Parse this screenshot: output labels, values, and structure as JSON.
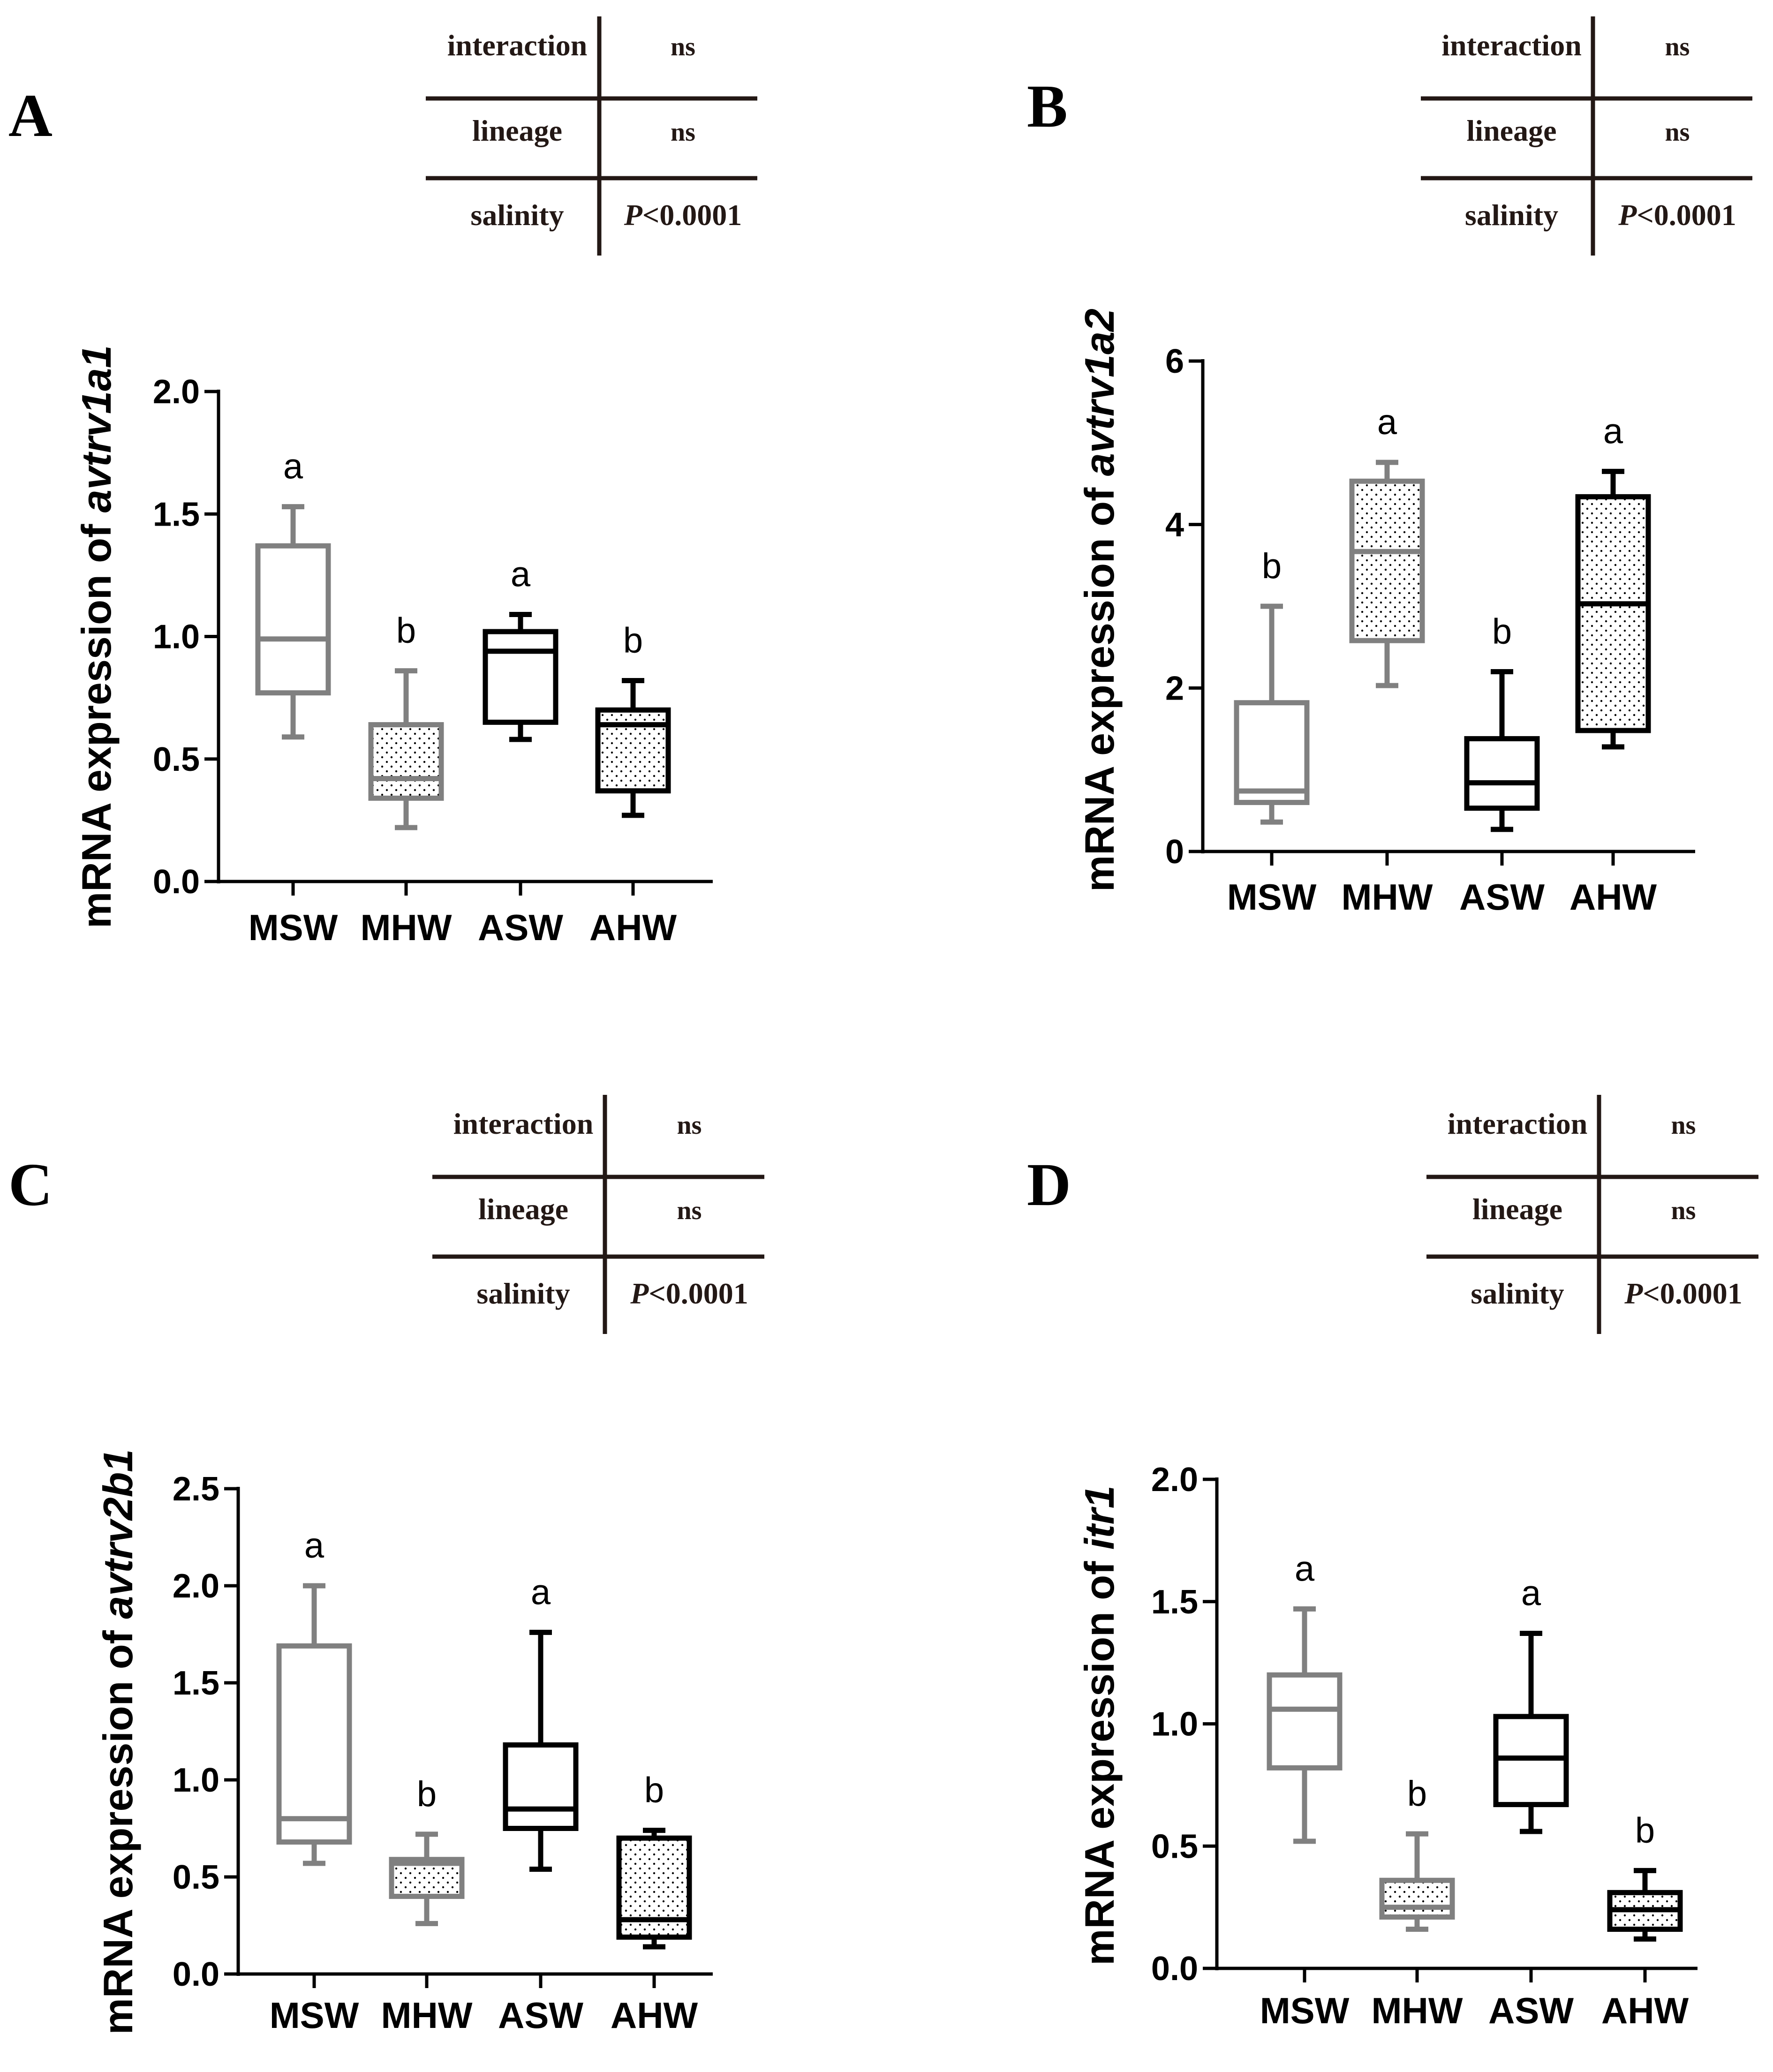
{
  "panels": [
    {
      "letter": "A",
      "gene": "avtrv1a1",
      "ylabel_prefix": "mRNA expression of ",
      "stats": [
        {
          "label": "interaction",
          "value": "ns"
        },
        {
          "label": "lineage",
          "value": "ns"
        },
        {
          "label": "salinity",
          "value": "<0.0001",
          "value_italic_prefix": "P"
        }
      ]
    },
    {
      "letter": "B",
      "gene": "avtrv1a2",
      "ylabel_prefix": "mRNA expression of ",
      "stats": [
        {
          "label": "interaction",
          "value": "ns"
        },
        {
          "label": "lineage",
          "value": "ns"
        },
        {
          "label": "salinity",
          "value": "<0.0001",
          "value_italic_prefix": "P"
        }
      ]
    },
    {
      "letter": "C",
      "gene": "avtrv2b1",
      "ylabel_prefix": "mRNA expression of ",
      "stats": [
        {
          "label": "interaction",
          "value": "ns"
        },
        {
          "label": "lineage",
          "value": "ns"
        },
        {
          "label": "salinity",
          "value": "<0.0001",
          "value_italic_prefix": "P"
        }
      ]
    },
    {
      "letter": "D",
      "gene": "itr1",
      "ylabel_prefix": "mRNA expression of ",
      "stats": [
        {
          "label": "interaction",
          "value": "ns"
        },
        {
          "label": "lineage",
          "value": "ns"
        },
        {
          "label": "salinity",
          "value": "<0.0001",
          "value_italic_prefix": "P"
        }
      ]
    }
  ],
  "colors": {
    "gray": "#808080",
    "black": "#000000",
    "table_line": "#231815"
  },
  "chart_data": [
    {
      "type": "box",
      "title": "A",
      "ylabel": "mRNA expression of avtrv1a1",
      "categories": [
        "MSW",
        "MHW",
        "ASW",
        "AHW"
      ],
      "ylim": [
        0,
        2.0
      ],
      "yticks": [
        "0.0",
        "0.5",
        "1.0",
        "1.5",
        "2.0"
      ],
      "ytick_values": [
        0,
        0.5,
        1.0,
        1.5,
        2.0
      ],
      "boxes": [
        {
          "category": "MSW",
          "min": 0.59,
          "q1": 0.77,
          "median": 0.99,
          "q3": 1.37,
          "max": 1.53,
          "letter": "a",
          "color": "gray",
          "pattern": false
        },
        {
          "category": "MHW",
          "min": 0.22,
          "q1": 0.34,
          "median": 0.42,
          "q3": 0.64,
          "max": 0.86,
          "letter": "b",
          "color": "gray",
          "pattern": true
        },
        {
          "category": "ASW",
          "min": 0.58,
          "q1": 0.65,
          "median": 0.94,
          "q3": 1.02,
          "max": 1.09,
          "letter": "a",
          "color": "black",
          "pattern": false
        },
        {
          "category": "AHW",
          "min": 0.27,
          "q1": 0.37,
          "median": 0.64,
          "q3": 0.7,
          "max": 0.82,
          "letter": "b",
          "color": "black",
          "pattern": true
        }
      ]
    },
    {
      "type": "box",
      "title": "B",
      "ylabel": "mRNA expression of avtrv1a2",
      "categories": [
        "MSW",
        "MHW",
        "ASW",
        "AHW"
      ],
      "ylim": [
        0,
        6
      ],
      "yticks": [
        "0",
        "2",
        "4",
        "6"
      ],
      "ytick_values": [
        0,
        2,
        4,
        6
      ],
      "boxes": [
        {
          "category": "MSW",
          "min": 0.36,
          "q1": 0.6,
          "median": 0.74,
          "q3": 1.82,
          "max": 3.0,
          "letter": "b",
          "color": "gray",
          "pattern": false
        },
        {
          "category": "MHW",
          "min": 2.03,
          "q1": 2.58,
          "median": 3.67,
          "q3": 4.53,
          "max": 4.76,
          "letter": "a",
          "color": "gray",
          "pattern": true
        },
        {
          "category": "ASW",
          "min": 0.27,
          "q1": 0.53,
          "median": 0.84,
          "q3": 1.38,
          "max": 2.2,
          "letter": "b",
          "color": "black",
          "pattern": false
        },
        {
          "category": "AHW",
          "min": 1.28,
          "q1": 1.48,
          "median": 3.03,
          "q3": 4.34,
          "max": 4.65,
          "letter": "a",
          "color": "black",
          "pattern": true
        }
      ]
    },
    {
      "type": "box",
      "title": "C",
      "ylabel": "mRNA expression of avtrv2b1",
      "categories": [
        "MSW",
        "MHW",
        "ASW",
        "AHW"
      ],
      "ylim": [
        0,
        2.5
      ],
      "yticks": [
        "0.0",
        "0.5",
        "1.0",
        "1.5",
        "2.0",
        "2.5"
      ],
      "ytick_values": [
        0,
        0.5,
        1.0,
        1.5,
        2.0,
        2.5
      ],
      "boxes": [
        {
          "category": "MSW",
          "min": 0.57,
          "q1": 0.68,
          "median": 0.8,
          "q3": 1.69,
          "max": 2.0,
          "letter": "a",
          "color": "gray",
          "pattern": false
        },
        {
          "category": "MHW",
          "min": 0.26,
          "q1": 0.4,
          "median": 0.57,
          "q3": 0.59,
          "max": 0.72,
          "letter": "b",
          "color": "gray",
          "pattern": true
        },
        {
          "category": "ASW",
          "min": 0.54,
          "q1": 0.75,
          "median": 0.85,
          "q3": 1.18,
          "max": 1.76,
          "letter": "a",
          "color": "black",
          "pattern": false
        },
        {
          "category": "AHW",
          "min": 0.14,
          "q1": 0.19,
          "median": 0.28,
          "q3": 0.7,
          "max": 0.74,
          "letter": "b",
          "color": "black",
          "pattern": true
        }
      ]
    },
    {
      "type": "box",
      "title": "D",
      "ylabel": "mRNA expression of itr1",
      "categories": [
        "MSW",
        "MHW",
        "ASW",
        "AHW"
      ],
      "ylim": [
        0,
        2.0
      ],
      "yticks": [
        "0.0",
        "0.5",
        "1.0",
        "1.5",
        "2.0"
      ],
      "ytick_values": [
        0,
        0.5,
        1.0,
        1.5,
        2.0
      ],
      "boxes": [
        {
          "category": "MSW",
          "min": 0.52,
          "q1": 0.82,
          "median": 1.06,
          "q3": 1.2,
          "max": 1.47,
          "letter": "a",
          "color": "gray",
          "pattern": false
        },
        {
          "category": "MHW",
          "min": 0.16,
          "q1": 0.21,
          "median": 0.25,
          "q3": 0.36,
          "max": 0.55,
          "letter": "b",
          "color": "gray",
          "pattern": true
        },
        {
          "category": "ASW",
          "min": 0.56,
          "q1": 0.67,
          "median": 0.86,
          "q3": 1.03,
          "max": 1.37,
          "letter": "a",
          "color": "black",
          "pattern": false
        },
        {
          "category": "AHW",
          "min": 0.12,
          "q1": 0.16,
          "median": 0.24,
          "q3": 0.31,
          "max": 0.4,
          "letter": "b",
          "color": "black",
          "pattern": true
        }
      ]
    }
  ]
}
